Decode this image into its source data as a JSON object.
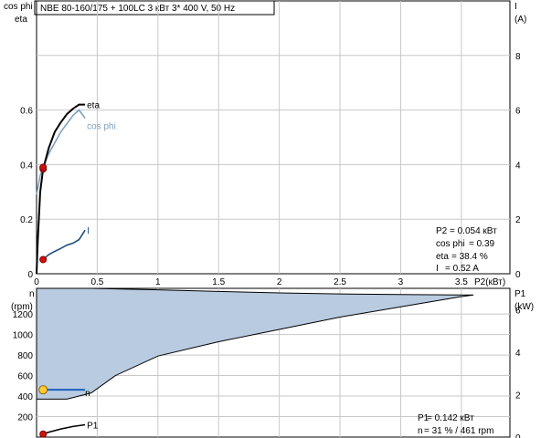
{
  "header": {
    "title": "NBE 80-160/175 + 100LC   3 кВт   3* 400 V, 50 Hz"
  },
  "readout_top": [
    {
      "label": "P2",
      "value": " = 0.054 кВт"
    },
    {
      "label": "cos phi",
      "value": " = 0.39"
    },
    {
      "label": "eta",
      "value": " = 38.4 %"
    },
    {
      "label": "I",
      "value": " = 0.52 A"
    }
  ],
  "readout_bottom": [
    {
      "label": "P1",
      "value": "  = 0.142 кВт"
    },
    {
      "label": "n",
      "value": "  = 31 % / 461 rpm"
    }
  ],
  "colors": {
    "eta": "#000000",
    "cos_phi": "#7f9fbf",
    "current": "#1f4e79",
    "p1": "#000000",
    "speed_area": "#b8cbe0",
    "speed_line": "#000000",
    "op_speed_line": "#1f5fbf",
    "op_point_marker": "#cc1111",
    "op_speed_marker": "#ffcc33",
    "grid": "#c8c8c8"
  },
  "chart_data": [
    {
      "type": "line",
      "title": "NBE 80-160/175 + 100LC   3 кВт   3* 400 V, 50 Hz",
      "xlabel": "P2(кВт)",
      "ylabel_left": [
        "cos phi",
        "eta"
      ],
      "ylabel_right": [
        "I",
        "(A)"
      ],
      "xlim": [
        0,
        3.9
      ],
      "x_ticks": [
        "0",
        "0.5",
        "1",
        "1.5",
        "2",
        "2.5",
        "3",
        "3.5"
      ],
      "ylim_left": [
        0,
        1.0
      ],
      "y_ticks_left": [
        "0",
        "0.2",
        "0.4",
        "0.6"
      ],
      "ylim_right": [
        0,
        10
      ],
      "y_ticks_right": [
        "0",
        "2",
        "4",
        "6",
        "8"
      ],
      "grid": true,
      "series": [
        {
          "name": "eta",
          "label": "eta",
          "axis": "left",
          "x": [
            0.0,
            0.01,
            0.03,
            0.054,
            0.1,
            0.15,
            0.2,
            0.25,
            0.3,
            0.35,
            0.4
          ],
          "y": [
            0.0,
            0.12,
            0.3,
            0.384,
            0.46,
            0.52,
            0.555,
            0.585,
            0.605,
            0.62,
            0.62
          ]
        },
        {
          "name": "cos phi",
          "label": "cos phi",
          "axis": "left",
          "x": [
            0.0,
            0.03,
            0.054,
            0.1,
            0.15,
            0.2,
            0.25,
            0.3,
            0.35,
            0.4
          ],
          "y": [
            0.29,
            0.36,
            0.39,
            0.44,
            0.48,
            0.52,
            0.55,
            0.58,
            0.6,
            0.57
          ]
        },
        {
          "name": "I",
          "label": "I",
          "axis": "right",
          "x": [
            0.054,
            0.1,
            0.15,
            0.2,
            0.25,
            0.3,
            0.35,
            0.4
          ],
          "y": [
            0.52,
            0.7,
            0.82,
            0.93,
            1.05,
            1.12,
            1.25,
            1.6
          ]
        }
      ],
      "operating_point": {
        "x": 0.054,
        "eta": 0.384,
        "cos_phi": 0.39,
        "I": 0.52
      }
    },
    {
      "type": "area",
      "xlim": [
        0,
        3.9
      ],
      "ylabel_left": [
        "n",
        "(rpm)"
      ],
      "ylabel_right": [
        "P1",
        "(kW)"
      ],
      "y_ticks_left": [
        "200",
        "400",
        "600",
        "800",
        "1000",
        "1200"
      ],
      "ylim_left": [
        0,
        1450
      ],
      "y_ticks_right": [
        "0",
        "2",
        "4",
        "6"
      ],
      "ylim_right": [
        0,
        7
      ],
      "grid": true,
      "series": [
        {
          "name": "n max",
          "axis": "left",
          "x": [
            0.0,
            0.45,
            1.0,
            1.5,
            2.0,
            2.5,
            3.0,
            3.5,
            3.6
          ],
          "y": [
            1450,
            1450,
            1435,
            1420,
            1405,
            1395,
            1390,
            1385,
            1385
          ]
        },
        {
          "name": "n min",
          "axis": "left",
          "x": [
            0.0,
            0.25,
            0.45,
            0.65,
            1.0,
            1.5,
            2.0,
            2.5,
            3.0,
            3.5,
            3.6
          ],
          "y": [
            370,
            370,
            430,
            600,
            790,
            930,
            1050,
            1170,
            1270,
            1370,
            1385
          ]
        },
        {
          "name": "P1",
          "label": "P1",
          "axis": "right",
          "x": [
            0.054,
            0.1,
            0.2,
            0.3,
            0.4
          ],
          "y": [
            0.142,
            0.23,
            0.38,
            0.5,
            0.58
          ]
        }
      ],
      "operating_point": {
        "x": 0.054,
        "n": 461,
        "n_percent": 31,
        "P1": 0.142
      },
      "n_line_label": "n"
    }
  ]
}
